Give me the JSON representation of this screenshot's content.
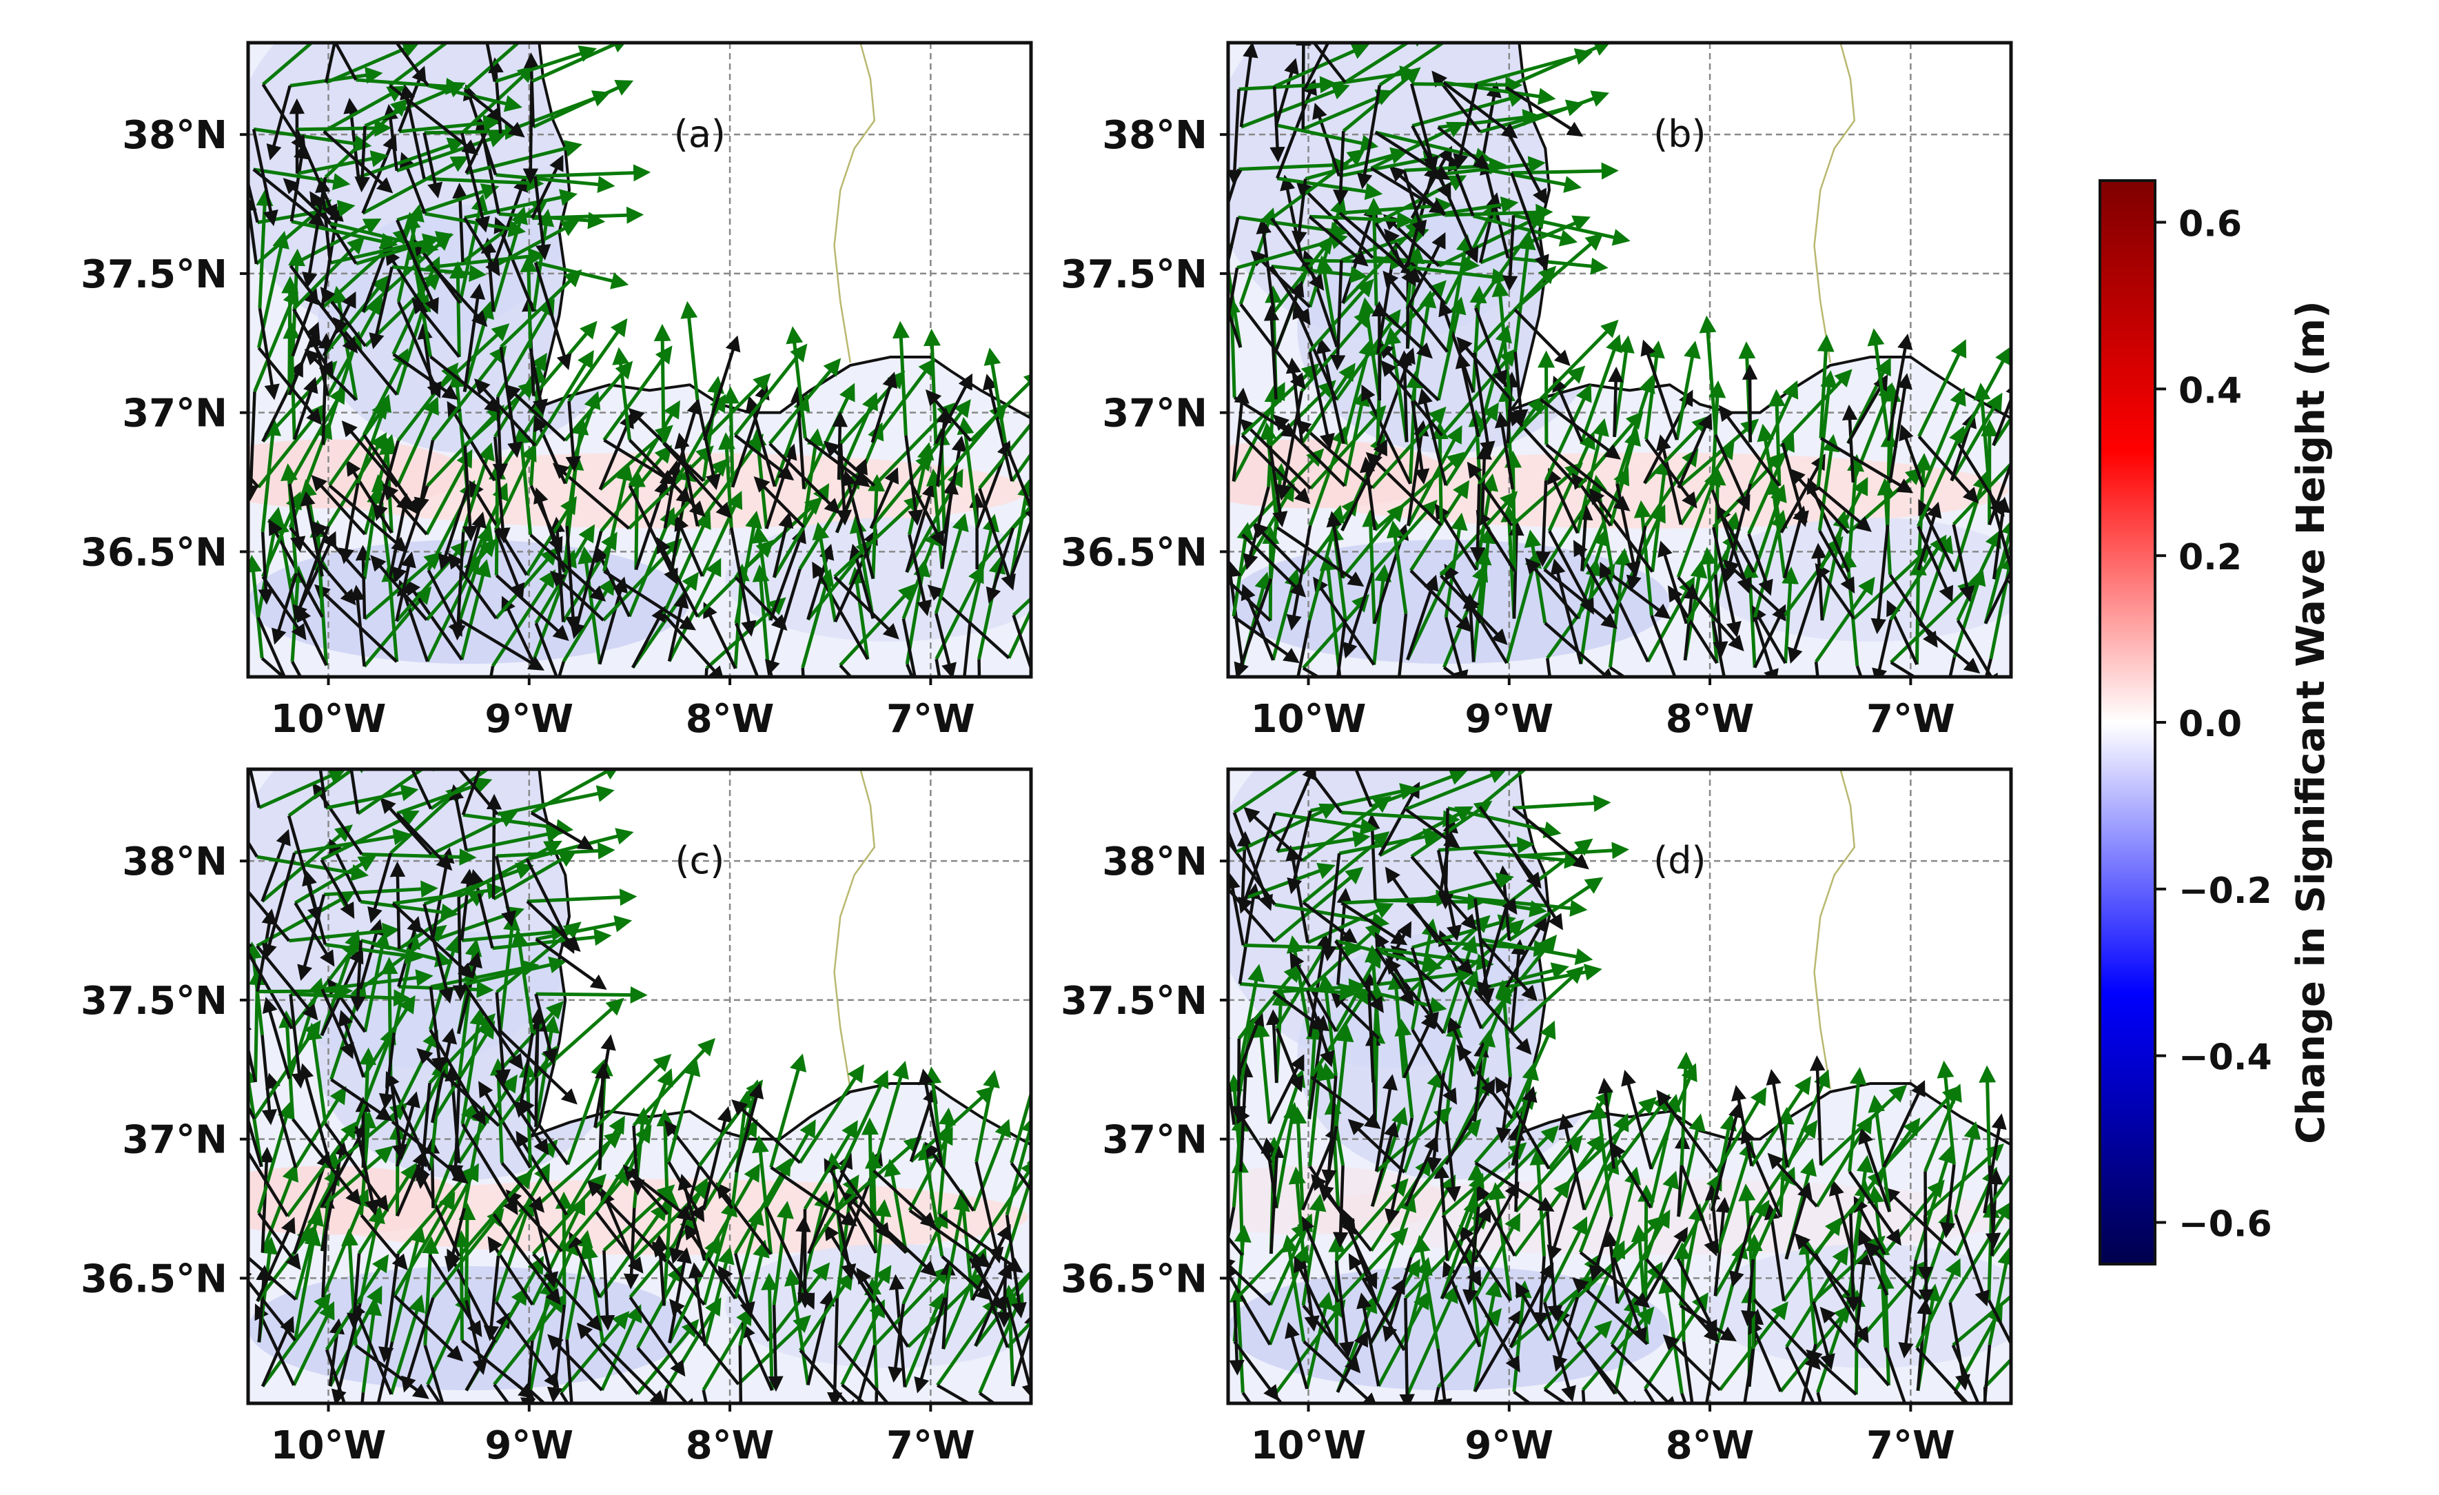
{
  "figure": {
    "colorbar": {
      "label": "Change in Significant Wave Height (m)",
      "ticks": [
        "0.6",
        "0.4",
        "0.2",
        "0.0",
        "−0.2",
        "−0.4",
        "−0.6"
      ],
      "tick_values": [
        0.6,
        0.4,
        0.2,
        0.0,
        -0.2,
        -0.4,
        -0.6
      ],
      "range": [
        -0.65,
        0.65
      ],
      "colormap": "seismic",
      "colors": {
        "low": "#00004c",
        "mid_low": "#0000ff",
        "mid": "#ffffff",
        "mid_high": "#ff0000",
        "high": "#7f0000"
      }
    },
    "axes": {
      "lon_ticks": [
        "10°W",
        "9°W",
        "8°W",
        "7°W"
      ],
      "lon_values": [
        -10,
        -9,
        -8,
        -7
      ],
      "lat_ticks": [
        "38°N",
        "37.5°N",
        "37°N",
        "36.5°N"
      ],
      "lat_values": [
        38,
        37.5,
        37,
        36.5
      ],
      "lon_range": [
        -10.4,
        -6.5
      ],
      "lat_range": [
        36.05,
        38.33
      ],
      "grid": true
    },
    "panels": [
      {
        "label": "(a)"
      },
      {
        "label": "(b)"
      },
      {
        "label": "(c)"
      },
      {
        "label": "(d)"
      }
    ],
    "arrow_colors": {
      "green": "#0a7a0a",
      "black": "#111111"
    },
    "border_color": "#b8b870",
    "coast_color": "#111111"
  }
}
